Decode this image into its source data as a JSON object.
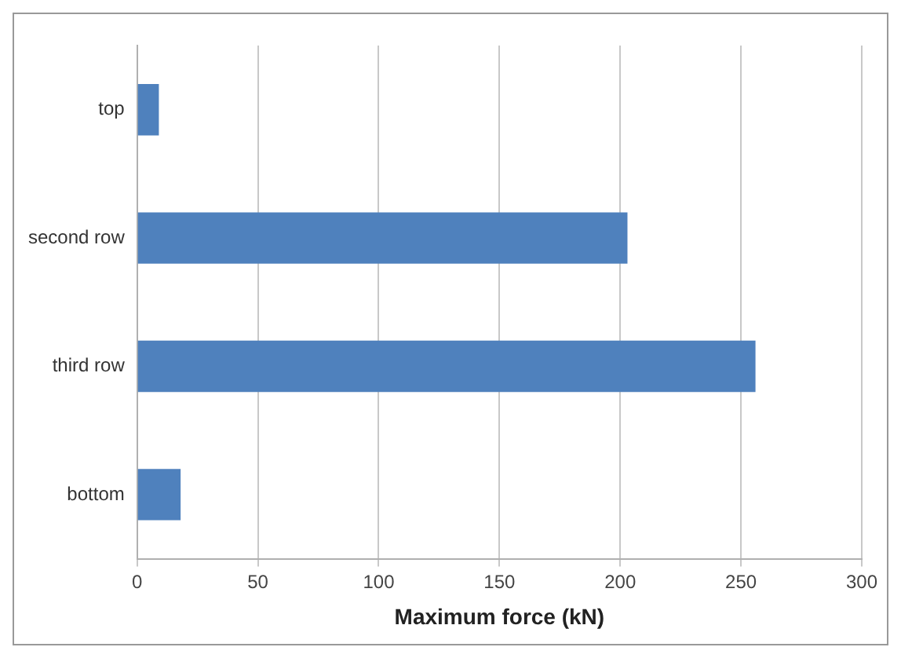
{
  "chart_data": {
    "type": "bar",
    "orientation": "horizontal",
    "xlabel": "Maximum force (kN)",
    "categories": [
      "top",
      "second row",
      "third row",
      "bottom"
    ],
    "values": [
      9,
      203,
      256,
      18
    ],
    "color": "#4f81bd",
    "xlim": [
      0,
      300
    ],
    "xticks": [
      0,
      50,
      100,
      150,
      200,
      250,
      300
    ],
    "grid": "x",
    "legend": false
  }
}
